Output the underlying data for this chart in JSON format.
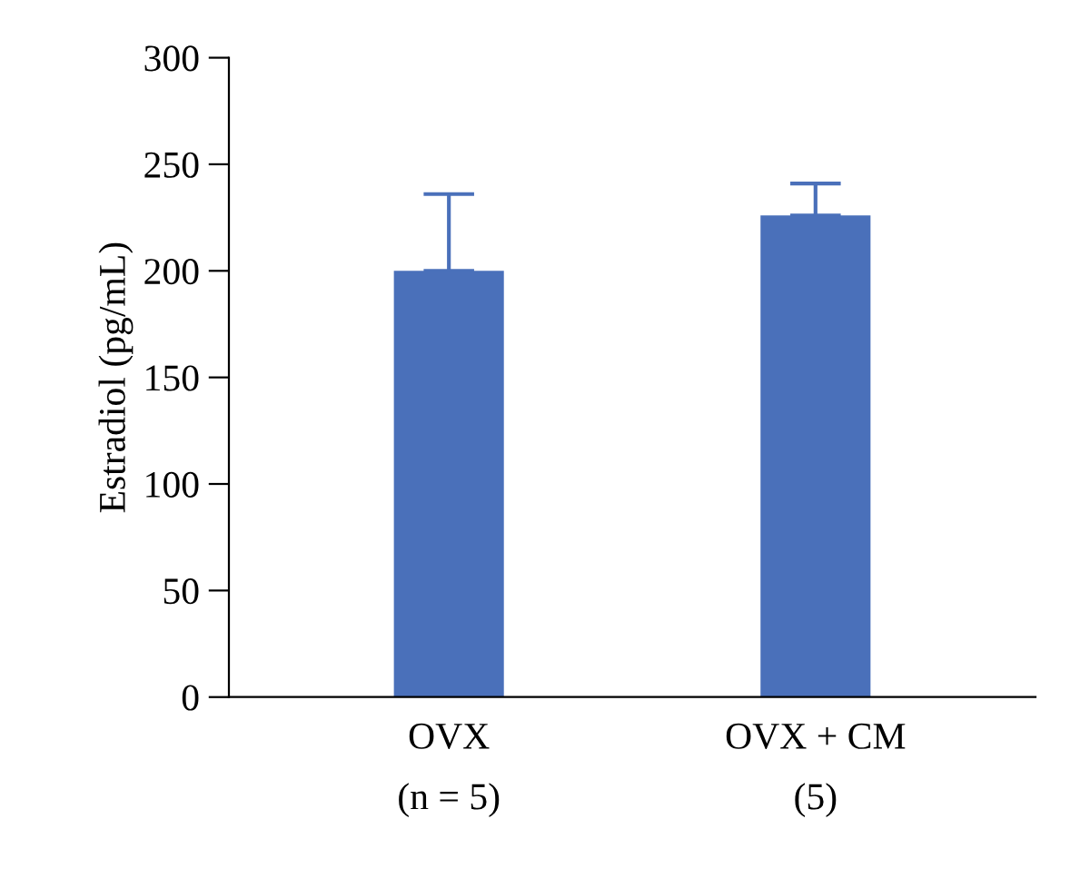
{
  "chart_data": {
    "type": "bar",
    "ylabel": "Estradiol (pg/mL)",
    "categories": [
      "OVX\n(n = 5)",
      "OVX + CM\n(5)"
    ],
    "values": [
      200,
      226
    ],
    "errors": [
      [
        200,
        236
      ],
      [
        226,
        241
      ]
    ],
    "color": "#4a70ba",
    "ylim": [
      0,
      300
    ],
    "yticks": [
      0,
      50,
      100,
      150,
      200,
      250,
      300
    ],
    "grid": false
  }
}
